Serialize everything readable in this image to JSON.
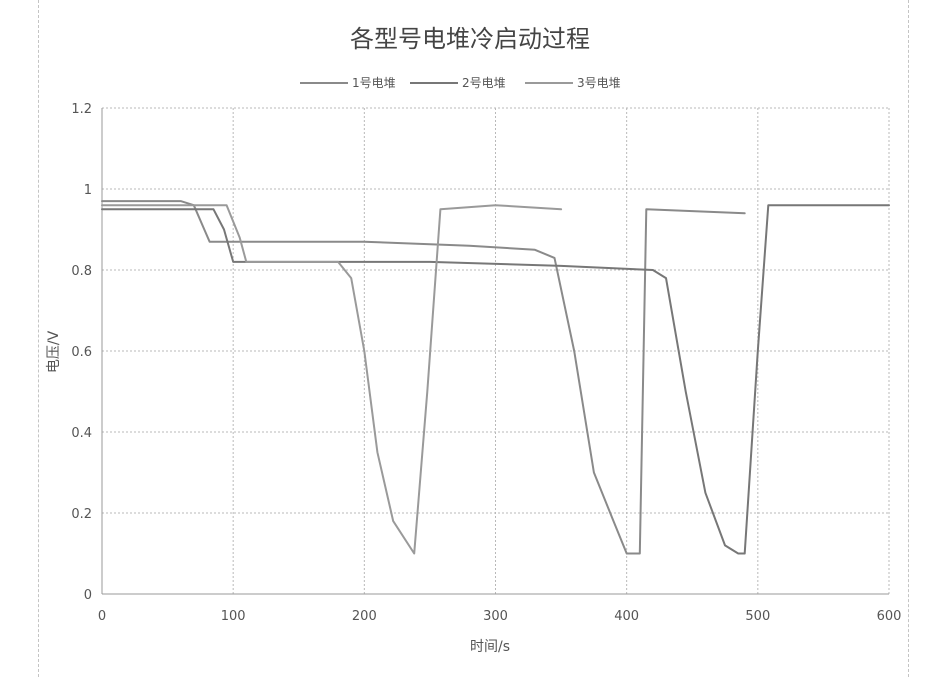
{
  "chart_data": {
    "type": "line",
    "title": "各型号电堆冷启动过程",
    "xlabel": "时间/s",
    "ylabel": "电压/V",
    "xlim": [
      0,
      600
    ],
    "ylim": [
      0,
      1.2
    ],
    "xticks": [
      0,
      100,
      200,
      300,
      400,
      500,
      600
    ],
    "yticks": [
      0,
      0.2,
      0.4,
      0.6,
      0.8,
      1,
      1.2
    ],
    "ytick_labels": [
      "0",
      "0.2",
      "0.4",
      "0.6",
      "0.8",
      "1",
      "1.2"
    ],
    "grid": true,
    "legend_position": "top",
    "series": [
      {
        "name": "1号电堆",
        "color": "#8a8a8a",
        "points": [
          [
            0,
            0.97
          ],
          [
            60,
            0.97
          ],
          [
            70,
            0.96
          ],
          [
            78,
            0.9
          ],
          [
            82,
            0.87
          ],
          [
            120,
            0.87
          ],
          [
            200,
            0.87
          ],
          [
            280,
            0.86
          ],
          [
            330,
            0.85
          ],
          [
            345,
            0.83
          ],
          [
            360,
            0.6
          ],
          [
            375,
            0.3
          ],
          [
            390,
            0.18
          ],
          [
            400,
            0.1
          ],
          [
            410,
            0.1
          ],
          [
            415,
            0.95
          ],
          [
            490,
            0.94
          ]
        ]
      },
      {
        "name": "2号电堆",
        "color": "#777777",
        "points": [
          [
            0,
            0.95
          ],
          [
            85,
            0.95
          ],
          [
            93,
            0.9
          ],
          [
            100,
            0.82
          ],
          [
            150,
            0.82
          ],
          [
            250,
            0.82
          ],
          [
            350,
            0.81
          ],
          [
            420,
            0.8
          ],
          [
            430,
            0.78
          ],
          [
            445,
            0.5
          ],
          [
            460,
            0.25
          ],
          [
            475,
            0.12
          ],
          [
            485,
            0.1
          ],
          [
            490,
            0.1
          ],
          [
            500,
            0.6
          ],
          [
            508,
            0.96
          ],
          [
            600,
            0.96
          ]
        ]
      },
      {
        "name": "3号电堆",
        "color": "#9a9a9a",
        "points": [
          [
            0,
            0.96
          ],
          [
            95,
            0.96
          ],
          [
            105,
            0.88
          ],
          [
            110,
            0.82
          ],
          [
            180,
            0.82
          ],
          [
            190,
            0.78
          ],
          [
            200,
            0.6
          ],
          [
            210,
            0.35
          ],
          [
            222,
            0.18
          ],
          [
            238,
            0.1
          ],
          [
            248,
            0.5
          ],
          [
            258,
            0.95
          ],
          [
            300,
            0.96
          ],
          [
            350,
            0.95
          ]
        ]
      }
    ]
  }
}
